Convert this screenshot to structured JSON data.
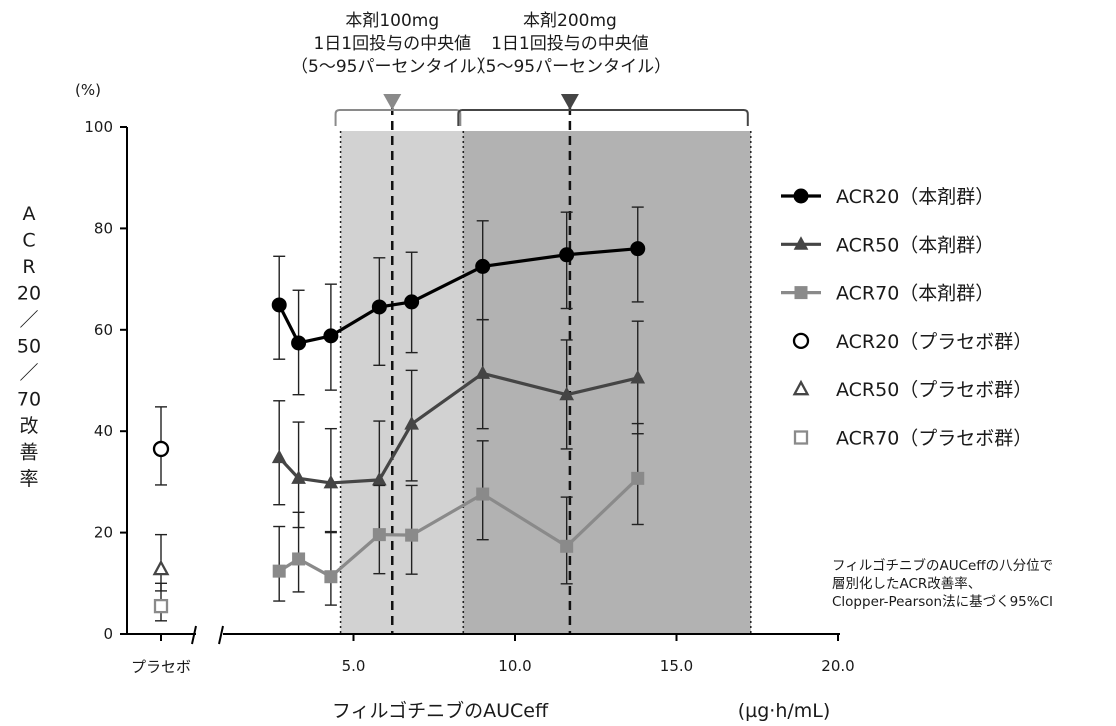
{
  "chart_data": {
    "type": "line",
    "y_unit_label": "(%)",
    "ylabel": "ACR20／50／70改善率",
    "xlabel": "フィルゴチニブのAUCeff",
    "x_unit_label": "(µg·h/mL)",
    "ylim": [
      0,
      100
    ],
    "xlim": [
      0,
      20
    ],
    "y_ticks": [
      0,
      20,
      40,
      60,
      80,
      100
    ],
    "x_ticks": [
      {
        "value": 5,
        "label": "5.0"
      },
      {
        "value": 10,
        "label": "10.0"
      },
      {
        "value": 15,
        "label": "15.0"
      },
      {
        "value": 20,
        "label": "20.0"
      }
    ],
    "placebo_label": "プラセボ",
    "grid": false,
    "series": [
      {
        "name": "ACR20（本剤群）",
        "color": "#000000",
        "marker": "circle",
        "x": [
          2.7,
          3.3,
          4.3,
          5.8,
          6.8,
          9.0,
          11.6,
          13.8
        ],
        "values": [
          64.9,
          57.4,
          58.8,
          64.5,
          65.5,
          72.5,
          74.8,
          76.0
        ],
        "error_low": [
          54.2,
          47.2,
          48.1,
          53.0,
          55.5,
          62.0,
          64.2,
          65.5
        ],
        "error_high": [
          74.5,
          67.8,
          69.0,
          74.2,
          75.3,
          81.5,
          83.2,
          84.2
        ]
      },
      {
        "name": "ACR50（本剤群）",
        "color": "#454545",
        "marker": "triangle",
        "x": [
          2.7,
          3.3,
          4.3,
          5.8,
          6.8,
          9.0,
          11.6,
          13.8
        ],
        "values": [
          34.8,
          30.7,
          29.8,
          30.4,
          41.4,
          51.4,
          47.2,
          50.5
        ],
        "error_low": [
          25.5,
          21.0,
          20.0,
          20.3,
          30.2,
          40.5,
          36.5,
          39.5
        ],
        "error_high": [
          46.0,
          41.8,
          40.5,
          42.0,
          52.0,
          62.0,
          58.0,
          61.7
        ]
      },
      {
        "name": "ACR70（本剤群）",
        "color": "#8a8a8a",
        "marker": "square",
        "x": [
          2.7,
          3.3,
          4.3,
          5.8,
          6.8,
          9.0,
          11.6,
          13.8
        ],
        "values": [
          12.4,
          14.8,
          11.3,
          19.6,
          19.5,
          27.6,
          17.3,
          30.7
        ],
        "error_low": [
          6.5,
          8.3,
          5.7,
          11.9,
          11.8,
          18.6,
          9.9,
          21.6
        ],
        "error_high": [
          21.2,
          24.0,
          20.2,
          29.3,
          29.3,
          38.1,
          27.0,
          41.5
        ]
      },
      {
        "name": "ACR20（プラセボ群）",
        "color": "#000000",
        "marker": "open-circle",
        "x": [
          "placebo"
        ],
        "values": [
          36.5
        ],
        "error_low": [
          29.4
        ],
        "error_high": [
          44.8
        ]
      },
      {
        "name": "ACR50（プラセボ群）",
        "color": "#454545",
        "marker": "open-triangle",
        "x": [
          "placebo"
        ],
        "values": [
          12.8
        ],
        "error_low": [
          8.5
        ],
        "error_high": [
          19.6
        ]
      },
      {
        "name": "ACR70（プラセボ群）",
        "color": "#8a8a8a",
        "marker": "open-square",
        "x": [
          "placebo"
        ],
        "values": [
          5.5
        ],
        "error_low": [
          2.6
        ],
        "error_high": [
          10.0
        ]
      }
    ],
    "dose_bands": [
      {
        "label_lines": [
          "本剤100mg",
          "1日1回投与の中央値",
          "（5〜95パーセンタイル）"
        ],
        "range": [
          4.6,
          8.4
        ],
        "median": 6.2,
        "fill": "#d2d2d2",
        "marker_color": "#8a8a8a"
      },
      {
        "label_lines": [
          "本剤200mg",
          "1日1回投与の中央値",
          "（5〜95パーセンタイル）"
        ],
        "range": [
          8.4,
          17.3
        ],
        "median": 11.7,
        "fill": "#b2b2b2",
        "marker_color": "#454545"
      }
    ],
    "annotation_lines": [
      "フィルゴチニブのAUCeffの八分位で",
      "層別化したACR改善率、",
      "Clopper-Pearson法に基づく95%CI"
    ]
  }
}
